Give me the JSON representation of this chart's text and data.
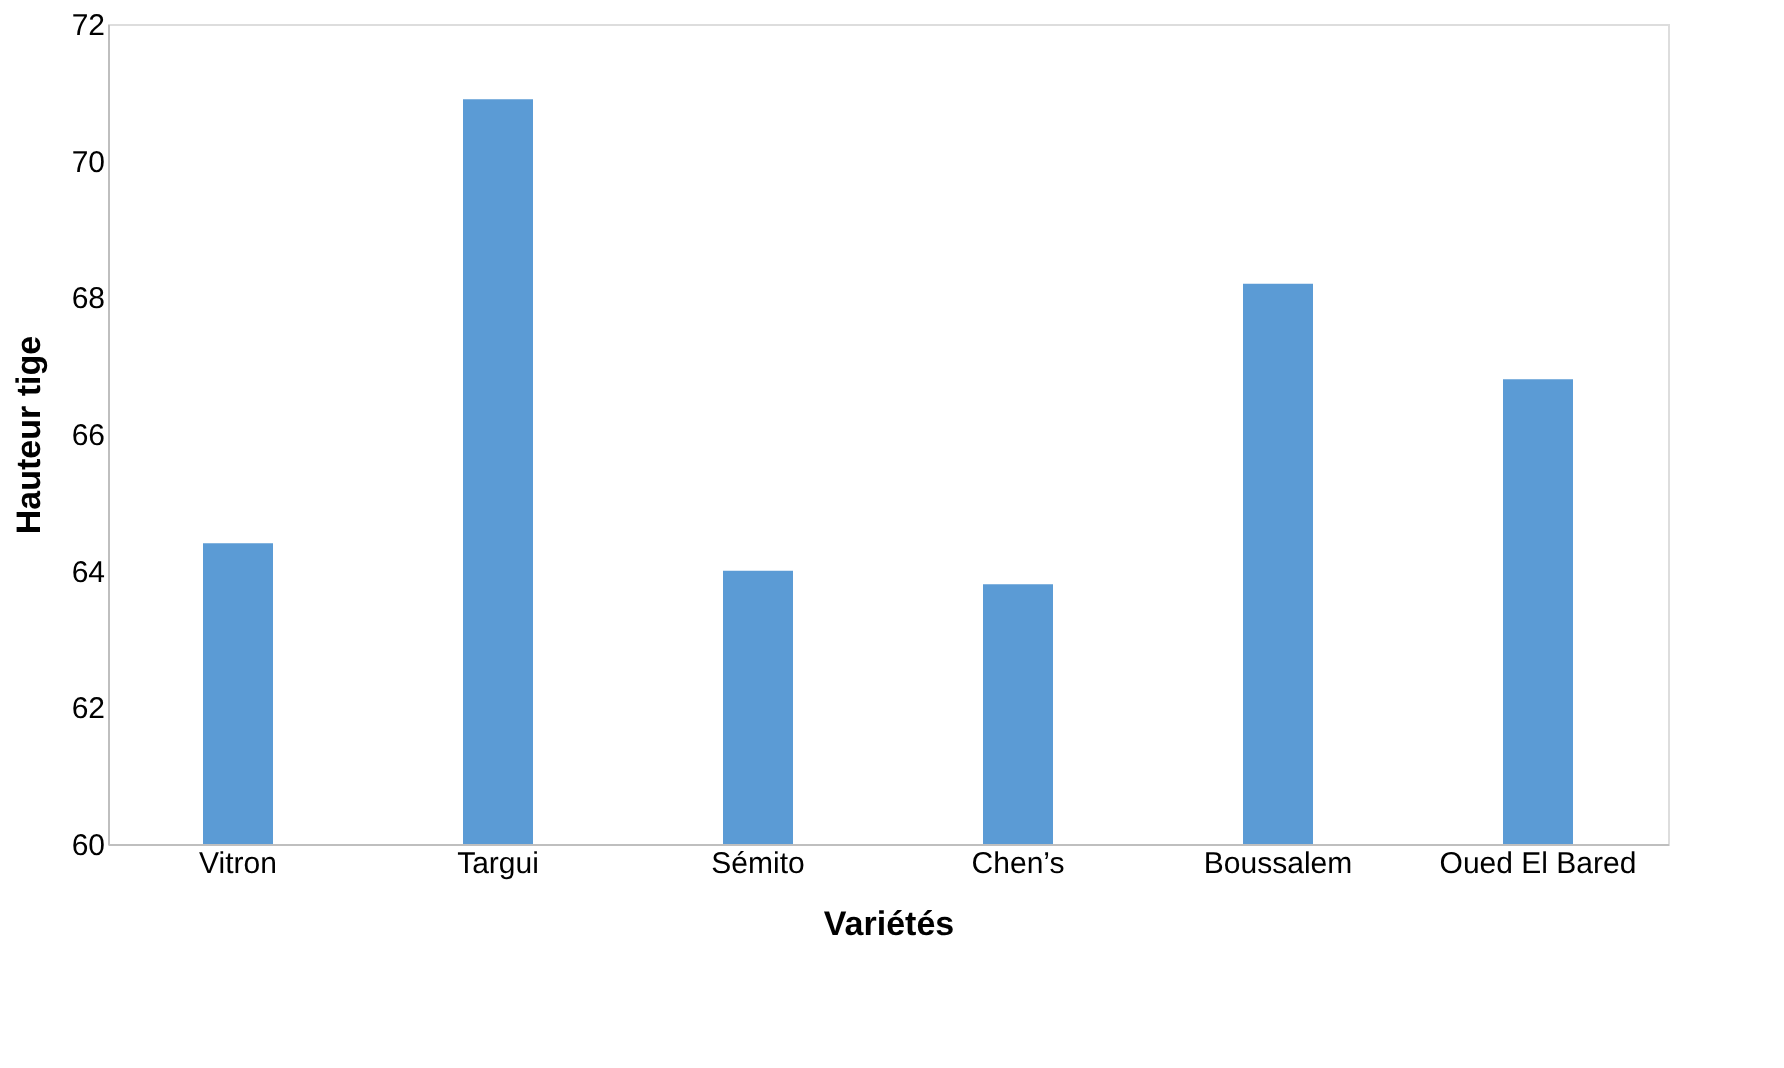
{
  "chart_data": {
    "type": "bar",
    "xlabel": "Variétés",
    "ylabel": "Hauteur tige",
    "categories": [
      "Vitron",
      "Targui",
      "Sémito",
      "Chen’s",
      "Boussalem",
      "Oued El Bared"
    ],
    "values": [
      64.4,
      70.9,
      64.0,
      63.8,
      68.2,
      66.8
    ],
    "color": "#5b9bd5",
    "ylim": [
      60,
      72
    ],
    "yticks": [
      60,
      62,
      64,
      66,
      68,
      70,
      72
    ],
    "grid": false
  }
}
